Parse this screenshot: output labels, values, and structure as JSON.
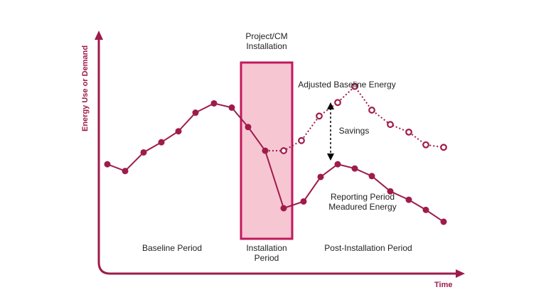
{
  "labels": {
    "y_axis": "Energy Use or Demand",
    "x_axis": "Time",
    "install_title_line1": "Project/CM",
    "install_title_line2": "Installation",
    "adjusted_baseline": "Adjusted Baseline Energy",
    "savings": "Savings",
    "reporting_line1": "Reporting Period",
    "reporting_line2": "Meadured Energy",
    "baseline_period": "Baseline Period",
    "installation_period_line1": "Installation",
    "installation_period_line2": "Period",
    "post_installation_period": "Post-Installation Period"
  },
  "colors": {
    "line": "#9e1b4b",
    "axis": "#9e1b4b",
    "band_fill": "#f7c6d3",
    "band_border": "#c2185b",
    "text": "#222222"
  },
  "series": {
    "measured": [
      0.52,
      0.44,
      0.66,
      0.78,
      0.91,
      1.13,
      1.24,
      1.19,
      0.96,
      0.68,
      0.0,
      0.08,
      0.37,
      0.52,
      0.47,
      0.38,
      0.2,
      0.1,
      -0.02,
      -0.16
    ],
    "adjusted_baseline": [
      0.68,
      0.8,
      1.09,
      1.25,
      1.44,
      1.16,
      0.99,
      0.9,
      0.75,
      0.72
    ]
  }
}
